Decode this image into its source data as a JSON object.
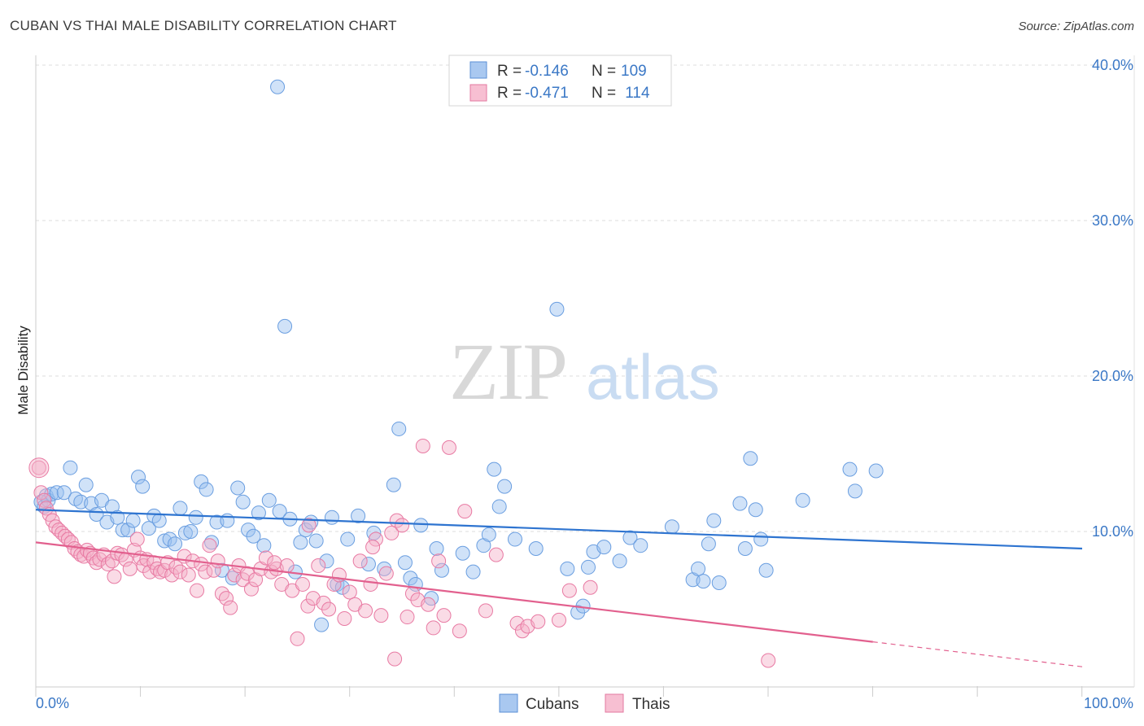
{
  "title": "CUBAN VS THAI MALE DISABILITY CORRELATION CHART",
  "source": "Source: ZipAtlas.com",
  "watermark": {
    "zip": "ZIP",
    "atlas": "atlas"
  },
  "legend_top": [
    {
      "r_label": "R = ",
      "r_value": "-0.146",
      "n_label": "N = ",
      "n_value": "109",
      "color": "#a9c8f0",
      "stroke": "#5b8fd6"
    },
    {
      "r_label": "R = ",
      "r_value": "-0.471",
      "n_label": "N = ",
      "n_value": " 114",
      "color": "#f7bfd2",
      "stroke": "#e37aa0"
    }
  ],
  "legend_bottom": [
    {
      "label": "Cubans",
      "color": "#a9c8f0",
      "stroke": "#5b8fd6"
    },
    {
      "label": "Thais",
      "color": "#f7bfd2",
      "stroke": "#e37aa0"
    }
  ],
  "chart_data": {
    "type": "scatter",
    "ylabel": "Male Disability",
    "xlim": [
      0,
      100
    ],
    "ylim": [
      0,
      40
    ],
    "x_tick_labels": [
      "0.0%",
      "100.0%"
    ],
    "y_ticks": [
      10,
      20,
      30,
      40
    ],
    "y_tick_labels": [
      "10.0%",
      "20.0%",
      "30.0%",
      "40.0%"
    ],
    "grid": true,
    "series": [
      {
        "name": "Cubans",
        "color": "#6a9ee0",
        "fill": "rgba(150,190,240,0.45)",
        "trend": {
          "x0": 0,
          "y0": 11.4,
          "x1": 100,
          "y1": 8.9,
          "dash_from": null
        },
        "points": [
          [
            0.5,
            11.9
          ],
          [
            0.8,
            11.6
          ],
          [
            1.0,
            12.3
          ],
          [
            1.2,
            12.0
          ],
          [
            1.5,
            12.4
          ],
          [
            2.0,
            12.5
          ],
          [
            2.7,
            12.5
          ],
          [
            3.3,
            14.1
          ],
          [
            3.8,
            12.1
          ],
          [
            4.3,
            11.9
          ],
          [
            4.8,
            13.0
          ],
          [
            5.3,
            11.8
          ],
          [
            5.8,
            11.1
          ],
          [
            6.3,
            12.0
          ],
          [
            6.8,
            10.6
          ],
          [
            7.3,
            11.6
          ],
          [
            7.8,
            10.9
          ],
          [
            8.3,
            10.1
          ],
          [
            8.8,
            10.1
          ],
          [
            9.3,
            10.7
          ],
          [
            9.8,
            13.5
          ],
          [
            10.2,
            12.9
          ],
          [
            10.8,
            10.2
          ],
          [
            11.3,
            11.0
          ],
          [
            11.8,
            10.7
          ],
          [
            12.3,
            9.4
          ],
          [
            12.8,
            9.5
          ],
          [
            13.3,
            9.2
          ],
          [
            13.8,
            11.5
          ],
          [
            14.3,
            9.9
          ],
          [
            14.8,
            10.0
          ],
          [
            15.3,
            10.9
          ],
          [
            15.8,
            13.2
          ],
          [
            16.3,
            12.7
          ],
          [
            16.8,
            9.3
          ],
          [
            17.3,
            10.6
          ],
          [
            17.8,
            7.5
          ],
          [
            18.3,
            10.7
          ],
          [
            18.8,
            7.0
          ],
          [
            19.3,
            12.8
          ],
          [
            19.8,
            11.9
          ],
          [
            20.3,
            10.1
          ],
          [
            20.8,
            9.7
          ],
          [
            21.3,
            11.2
          ],
          [
            21.8,
            9.1
          ],
          [
            22.3,
            12.0
          ],
          [
            23.3,
            11.3
          ],
          [
            23.8,
            23.2
          ],
          [
            24.3,
            10.8
          ],
          [
            24.8,
            7.4
          ],
          [
            25.3,
            9.3
          ],
          [
            25.8,
            10.1
          ],
          [
            26.3,
            10.6
          ],
          [
            26.8,
            9.4
          ],
          [
            27.3,
            4.0
          ],
          [
            27.8,
            8.1
          ],
          [
            28.3,
            10.9
          ],
          [
            28.8,
            6.6
          ],
          [
            29.3,
            6.4
          ],
          [
            29.8,
            9.5
          ],
          [
            30.8,
            11.0
          ],
          [
            31.8,
            7.9
          ],
          [
            32.3,
            9.9
          ],
          [
            33.3,
            7.6
          ],
          [
            34.2,
            13.0
          ],
          [
            34.7,
            16.6
          ],
          [
            35.3,
            8.0
          ],
          [
            35.8,
            7.0
          ],
          [
            36.3,
            6.6
          ],
          [
            36.8,
            10.4
          ],
          [
            37.8,
            5.7
          ],
          [
            38.3,
            8.9
          ],
          [
            38.8,
            7.5
          ],
          [
            40.8,
            8.6
          ],
          [
            41.8,
            7.4
          ],
          [
            42.8,
            9.1
          ],
          [
            43.3,
            9.8
          ],
          [
            43.8,
            14.0
          ],
          [
            44.3,
            11.6
          ],
          [
            44.8,
            12.9
          ],
          [
            45.8,
            9.5
          ],
          [
            47.8,
            8.9
          ],
          [
            49.8,
            24.3
          ],
          [
            50.8,
            7.6
          ],
          [
            51.8,
            4.8
          ],
          [
            52.3,
            5.2
          ],
          [
            52.8,
            7.7
          ],
          [
            53.3,
            8.7
          ],
          [
            54.3,
            9.0
          ],
          [
            55.8,
            8.1
          ],
          [
            56.8,
            9.6
          ],
          [
            57.8,
            9.1
          ],
          [
            60.8,
            10.3
          ],
          [
            62.8,
            6.9
          ],
          [
            63.3,
            7.6
          ],
          [
            63.8,
            6.8
          ],
          [
            64.3,
            9.2
          ],
          [
            64.8,
            10.7
          ],
          [
            65.3,
            6.7
          ],
          [
            67.3,
            11.8
          ],
          [
            67.8,
            8.9
          ],
          [
            68.3,
            14.7
          ],
          [
            68.8,
            11.4
          ],
          [
            69.3,
            9.5
          ],
          [
            69.8,
            7.5
          ],
          [
            73.3,
            12.0
          ],
          [
            77.8,
            14.0
          ],
          [
            78.3,
            12.6
          ],
          [
            80.3,
            13.9
          ],
          [
            23.1,
            38.6
          ]
        ]
      },
      {
        "name": "Thais",
        "color": "#e87aa3",
        "fill": "rgba(245,175,200,0.45)",
        "trend": {
          "x0": 0,
          "y0": 9.3,
          "x1": 100,
          "y1": 1.3,
          "dash_from": 80
        },
        "points": [
          [
            0.3,
            14.1
          ],
          [
            0.5,
            12.5
          ],
          [
            0.8,
            12.0
          ],
          [
            1.0,
            11.5
          ],
          [
            1.3,
            11.1
          ],
          [
            1.6,
            10.7
          ],
          [
            1.9,
            10.3
          ],
          [
            2.2,
            10.1
          ],
          [
            2.5,
            9.9
          ],
          [
            2.8,
            9.7
          ],
          [
            3.1,
            9.5
          ],
          [
            3.4,
            9.3
          ],
          [
            3.7,
            8.9
          ],
          [
            4.0,
            8.7
          ],
          [
            4.3,
            8.5
          ],
          [
            4.6,
            8.4
          ],
          [
            4.9,
            8.8
          ],
          [
            5.2,
            8.6
          ],
          [
            5.5,
            8.3
          ],
          [
            5.8,
            8.0
          ],
          [
            6.1,
            8.2
          ],
          [
            6.5,
            8.5
          ],
          [
            6.9,
            7.9
          ],
          [
            7.3,
            8.1
          ],
          [
            7.5,
            7.1
          ],
          [
            7.8,
            8.6
          ],
          [
            8.2,
            8.5
          ],
          [
            8.6,
            8.2
          ],
          [
            9.0,
            7.6
          ],
          [
            9.4,
            8.8
          ],
          [
            9.7,
            9.5
          ],
          [
            10.0,
            8.3
          ],
          [
            10.3,
            7.8
          ],
          [
            10.6,
            8.2
          ],
          [
            10.9,
            7.4
          ],
          [
            11.3,
            8.0
          ],
          [
            11.6,
            7.6
          ],
          [
            11.9,
            7.4
          ],
          [
            12.3,
            7.5
          ],
          [
            12.6,
            8.0
          ],
          [
            13.0,
            7.2
          ],
          [
            13.4,
            7.7
          ],
          [
            13.8,
            7.4
          ],
          [
            14.2,
            8.4
          ],
          [
            14.6,
            7.2
          ],
          [
            15.0,
            8.1
          ],
          [
            15.4,
            6.2
          ],
          [
            15.8,
            7.9
          ],
          [
            16.2,
            7.4
          ],
          [
            16.6,
            9.1
          ],
          [
            17.0,
            7.5
          ],
          [
            17.4,
            8.1
          ],
          [
            17.8,
            6.0
          ],
          [
            18.2,
            5.7
          ],
          [
            18.6,
            5.1
          ],
          [
            19.0,
            7.2
          ],
          [
            19.4,
            7.8
          ],
          [
            19.8,
            6.9
          ],
          [
            20.2,
            7.3
          ],
          [
            20.6,
            6.3
          ],
          [
            21.0,
            6.9
          ],
          [
            21.5,
            7.6
          ],
          [
            22.0,
            8.3
          ],
          [
            22.5,
            7.4
          ],
          [
            23.0,
            7.6
          ],
          [
            23.5,
            6.6
          ],
          [
            24.0,
            7.8
          ],
          [
            24.5,
            6.2
          ],
          [
            25.0,
            3.1
          ],
          [
            25.5,
            6.6
          ],
          [
            26.0,
            5.2
          ],
          [
            26.5,
            5.7
          ],
          [
            27.0,
            7.8
          ],
          [
            27.5,
            5.4
          ],
          [
            28.0,
            5.0
          ],
          [
            28.5,
            6.6
          ],
          [
            29.0,
            7.2
          ],
          [
            29.5,
            4.4
          ],
          [
            30.0,
            6.1
          ],
          [
            30.5,
            5.3
          ],
          [
            31.0,
            8.1
          ],
          [
            31.5,
            4.9
          ],
          [
            32.0,
            6.6
          ],
          [
            32.5,
            9.5
          ],
          [
            33.0,
            4.6
          ],
          [
            33.5,
            7.3
          ],
          [
            34.0,
            9.9
          ],
          [
            34.5,
            10.7
          ],
          [
            35.0,
            10.4
          ],
          [
            35.5,
            4.5
          ],
          [
            36.0,
            6.0
          ],
          [
            36.5,
            5.6
          ],
          [
            37.0,
            15.5
          ],
          [
            37.5,
            5.3
          ],
          [
            38.0,
            3.8
          ],
          [
            38.5,
            8.1
          ],
          [
            39.0,
            4.6
          ],
          [
            39.5,
            15.4
          ],
          [
            40.5,
            3.6
          ],
          [
            41.0,
            11.3
          ],
          [
            43.0,
            4.9
          ],
          [
            44.0,
            8.5
          ],
          [
            46.0,
            4.1
          ],
          [
            46.5,
            3.6
          ],
          [
            47.0,
            3.9
          ],
          [
            48.0,
            4.2
          ],
          [
            50.0,
            4.3
          ],
          [
            51.0,
            6.2
          ],
          [
            53.0,
            6.4
          ],
          [
            70.0,
            1.7
          ],
          [
            34.3,
            1.8
          ],
          [
            32.2,
            9.0
          ],
          [
            26.1,
            10.4
          ],
          [
            22.8,
            8.0
          ]
        ]
      }
    ]
  }
}
